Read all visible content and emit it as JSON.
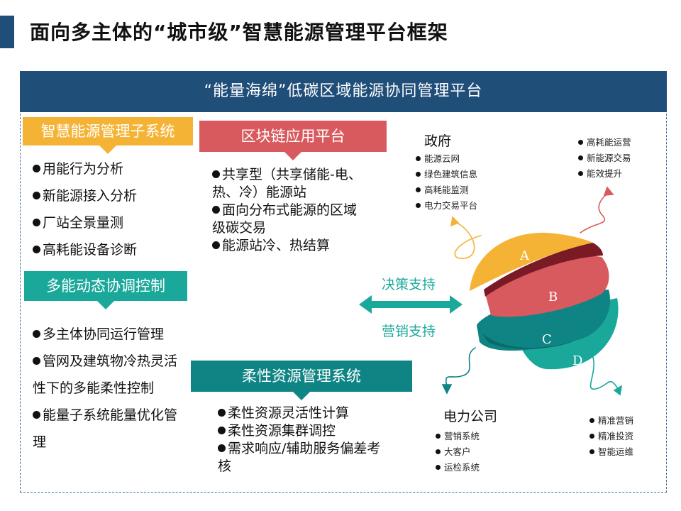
{
  "page_title": "面向多主体的“城市级”智慧能源管理平台框架",
  "banner": "“能量海绵”低碳区域能源协同管理平台",
  "colors": {
    "navy": "#1f4e79",
    "orange": "#f5b335",
    "red": "#d95a5e",
    "teal": "#1aa89a",
    "dark_teal": "#0f8484",
    "maroon": "#7a1a24"
  },
  "smart_energy": {
    "title": "智慧能源管理子系统",
    "items": [
      "用能行为分析",
      "新能源接入分析",
      "厂站全景量测",
      "高耗能设备诊断"
    ]
  },
  "multi_energy": {
    "title": "多能动态协调控制",
    "items": [
      "多主体协同运行管理",
      "管网及建筑物冷热灵活性下的多能柔性控制",
      "能量子系统能量优化管理"
    ]
  },
  "blockchain": {
    "title": "区块链应用平台",
    "items": [
      "共享型（共享储能-电、热、冷）能源站",
      "面向分布式能源的区域级碳交易",
      "能源站冷、热结算"
    ]
  },
  "flexible": {
    "title": "柔性资源管理系统",
    "items": [
      "柔性资源灵活性计算",
      "柔性资源集群调控",
      "需求响应/辅助服务偏差考核"
    ]
  },
  "middle": {
    "decision": "决策支持",
    "marketing": "营销支持"
  },
  "government": {
    "title": "政府",
    "items": [
      "能源云网",
      "绿色建筑信息",
      "高耗能监测",
      "电力交易平台"
    ]
  },
  "top_right": {
    "items": [
      "高耗能运营",
      "新能源交易",
      "能效提升"
    ]
  },
  "power_company": {
    "title": "电力公司",
    "items": [
      "营销系统",
      "大客户",
      "运检系统"
    ]
  },
  "bottom_right": {
    "items": [
      "精准营销",
      "精准投资",
      "智能运维"
    ]
  },
  "layers": [
    "A",
    "B",
    "C",
    "D"
  ]
}
